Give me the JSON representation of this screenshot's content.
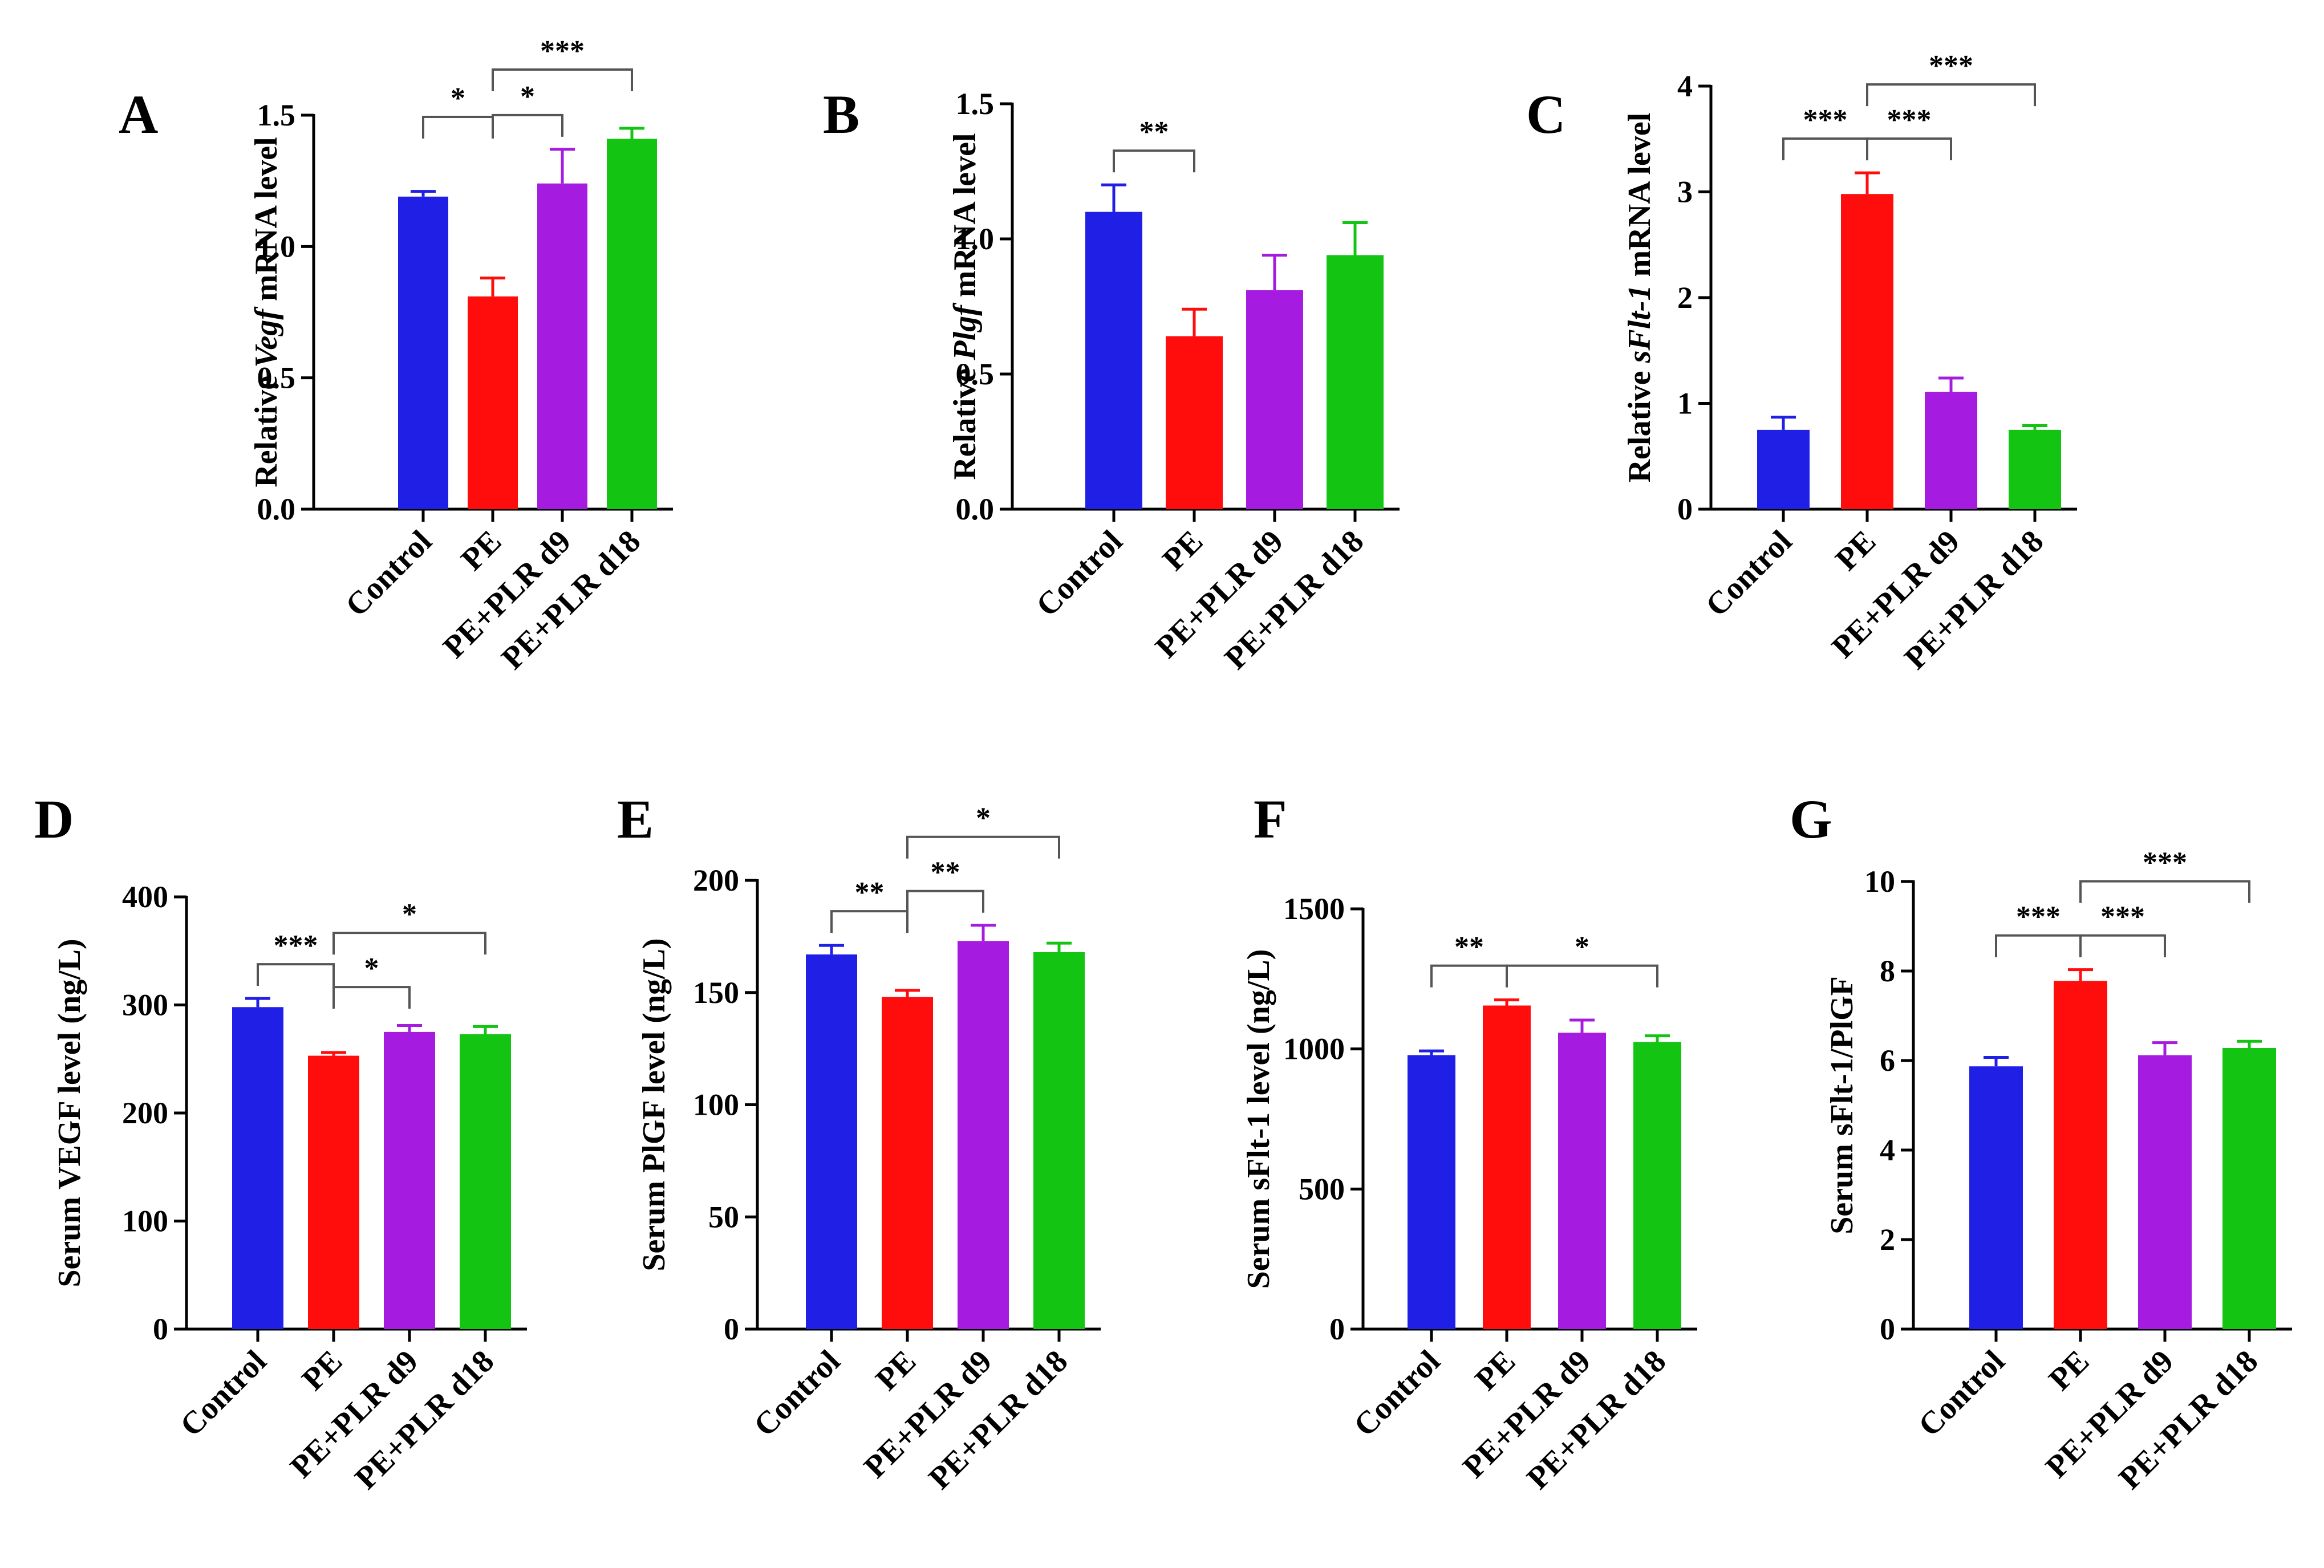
{
  "figure": {
    "panels_description": "Seven bar charts A–G comparing four groups",
    "group_colors": [
      "#1f1fe6",
      "#ff0d0d",
      "#a61be0",
      "#13c413"
    ]
  },
  "chart_data": [
    {
      "panel": "A",
      "type": "bar",
      "title": "",
      "ylabel_parts": [
        [
          "Relative ",
          false
        ],
        [
          "Vegf",
          true
        ],
        [
          " mRNA level",
          false
        ]
      ],
      "categories": [
        "Control",
        "PE",
        "PE+PLR d9",
        "PE+PLR d18"
      ],
      "values": [
        1.19,
        0.81,
        1.24,
        1.41
      ],
      "errors": [
        0.02,
        0.07,
        0.13,
        0.04
      ],
      "ylim": [
        0,
        1.5
      ],
      "yticks": [
        0,
        0.5,
        1.0,
        1.5
      ],
      "ytick_labels": [
        "0.0",
        "0.5",
        "1.0",
        "1.5"
      ],
      "significance": [
        {
          "from": 0,
          "to": 1,
          "label": "*",
          "level": 0
        },
        {
          "from": 1,
          "to": 2,
          "label": "*",
          "level": 0
        },
        {
          "from": 1,
          "to": 3,
          "label": "***",
          "level": 1
        }
      ]
    },
    {
      "panel": "B",
      "type": "bar",
      "title": "",
      "ylabel_parts": [
        [
          "Relative ",
          false
        ],
        [
          "Plgf",
          true
        ],
        [
          " mRNA level",
          false
        ]
      ],
      "categories": [
        "Control",
        "PE",
        "PE+PLR d9",
        "PE+PLR d18"
      ],
      "values": [
        1.1,
        0.64,
        0.81,
        0.94
      ],
      "errors": [
        0.1,
        0.1,
        0.13,
        0.12
      ],
      "ylim": [
        0,
        1.5
      ],
      "yticks": [
        0,
        0.5,
        1.0,
        1.5
      ],
      "ytick_labels": [
        "0.0",
        "0.5",
        "1.0",
        "1.5"
      ],
      "significance": [
        {
          "from": 0,
          "to": 1,
          "label": "**",
          "level": 0
        }
      ]
    },
    {
      "panel": "C",
      "type": "bar",
      "title": "",
      "ylabel_parts": [
        [
          "Relative ",
          false
        ],
        [
          "sFlt-1",
          true
        ],
        [
          " mRNA level",
          false
        ]
      ],
      "categories": [
        "Control",
        "PE",
        "PE+PLR d9",
        "PE+PLR d18"
      ],
      "values": [
        0.75,
        2.98,
        1.11,
        0.75
      ],
      "errors": [
        0.12,
        0.2,
        0.13,
        0.04
      ],
      "ylim": [
        0,
        4
      ],
      "yticks": [
        0,
        1,
        2,
        3,
        4
      ],
      "ytick_labels": [
        "0",
        "1",
        "2",
        "3",
        "4"
      ],
      "significance": [
        {
          "from": 0,
          "to": 1,
          "label": "***",
          "level": 0
        },
        {
          "from": 1,
          "to": 2,
          "label": "***",
          "level": 0
        },
        {
          "from": 1,
          "to": 3,
          "label": "***",
          "level": 1
        }
      ]
    },
    {
      "panel": "D",
      "type": "bar",
      "title": "",
      "ylabel_parts": [
        [
          "Serum VEGF level (ng/L)",
          false
        ]
      ],
      "categories": [
        "Control",
        "PE",
        "PE+PLR d9",
        "PE+PLR d18"
      ],
      "values": [
        298,
        253,
        275,
        273
      ],
      "errors": [
        8,
        3,
        6,
        7
      ],
      "ylim": [
        0,
        400
      ],
      "yticks": [
        0,
        100,
        200,
        300,
        400
      ],
      "ytick_labels": [
        "0",
        "100",
        "200",
        "300",
        "400"
      ],
      "significance": [
        {
          "from": 0,
          "to": 1,
          "label": "***",
          "level": 0
        },
        {
          "from": 1,
          "to": 2,
          "label": "*",
          "level": 0
        },
        {
          "from": 1,
          "to": 3,
          "label": "*",
          "level": 1
        }
      ]
    },
    {
      "panel": "E",
      "type": "bar",
      "title": "",
      "ylabel_parts": [
        [
          "Serum PlGF level (ng/L)",
          false
        ]
      ],
      "categories": [
        "Control",
        "PE",
        "PE+PLR d9",
        "PE+PLR d18"
      ],
      "values": [
        167,
        148,
        173,
        168
      ],
      "errors": [
        4,
        3,
        7,
        4
      ],
      "ylim": [
        0,
        200
      ],
      "yticks": [
        0,
        50,
        100,
        150,
        200
      ],
      "ytick_labels": [
        "0",
        "50",
        "100",
        "150",
        "200"
      ],
      "significance": [
        {
          "from": 0,
          "to": 1,
          "label": "**",
          "level": 0
        },
        {
          "from": 1,
          "to": 2,
          "label": "**",
          "level": 0
        },
        {
          "from": 1,
          "to": 3,
          "label": "*",
          "level": 1
        }
      ]
    },
    {
      "panel": "F",
      "type": "bar",
      "title": "",
      "ylabel_parts": [
        [
          "Serum sFlt-1 level (ng/L)",
          false
        ]
      ],
      "categories": [
        "Control",
        "PE",
        "PE+PLR d9",
        "PE+PLR d18"
      ],
      "values": [
        978,
        1155,
        1058,
        1025
      ],
      "errors": [
        15,
        20,
        45,
        22
      ],
      "ylim": [
        0,
        1500
      ],
      "yticks": [
        0,
        500,
        1000,
        1500
      ],
      "ytick_labels": [
        "0",
        "500",
        "1000",
        "1500"
      ],
      "significance": [
        {
          "from": 0,
          "to": 1,
          "label": "**",
          "level": 0
        },
        {
          "from": 1,
          "to": 3,
          "label": "*",
          "level": 0
        }
      ]
    },
    {
      "panel": "G",
      "type": "bar",
      "title": "",
      "ylabel_parts": [
        [
          "Serum sFlt-1/PlGF",
          false
        ]
      ],
      "categories": [
        "Control",
        "PE",
        "PE+PLR d9",
        "PE+PLR d18"
      ],
      "values": [
        5.87,
        7.78,
        6.12,
        6.28
      ],
      "errors": [
        0.2,
        0.25,
        0.28,
        0.15
      ],
      "ylim": [
        0,
        10
      ],
      "yticks": [
        0,
        2,
        4,
        6,
        8,
        10
      ],
      "ytick_labels": [
        "0",
        "2",
        "4",
        "6",
        "8",
        "10"
      ],
      "significance": [
        {
          "from": 0,
          "to": 1,
          "label": "***",
          "level": 0
        },
        {
          "from": 1,
          "to": 2,
          "label": "***",
          "level": 0
        },
        {
          "from": 1,
          "to": 3,
          "label": "***",
          "level": 1
        }
      ]
    }
  ]
}
